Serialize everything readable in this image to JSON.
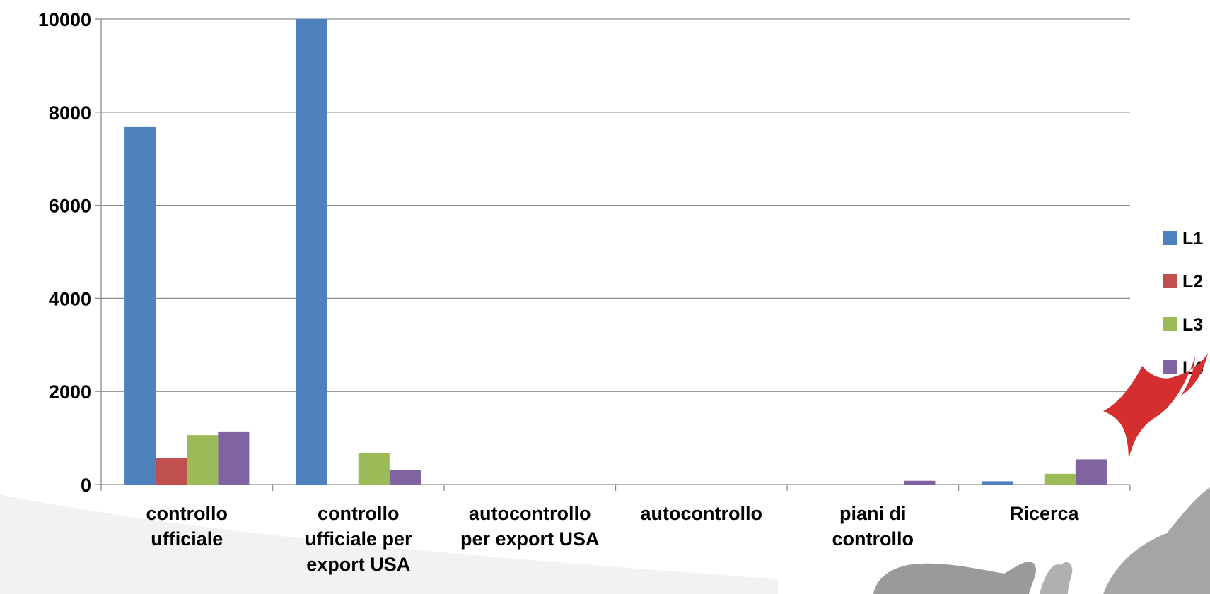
{
  "chart_data": {
    "type": "bar",
    "title": "",
    "xlabel": "",
    "ylabel": "",
    "ylim": [
      0,
      10000
    ],
    "yticks": [
      0,
      2000,
      4000,
      6000,
      8000,
      10000
    ],
    "grid": true,
    "legend_position": "right",
    "categories": [
      [
        "controllo",
        "ufficiale"
      ],
      [
        "controllo",
        "ufficiale per",
        "export USA"
      ],
      [
        "autocontrollo",
        "per export USA"
      ],
      [
        "autocontrollo"
      ],
      [
        "piani di",
        "controllo"
      ],
      [
        "Ricerca"
      ]
    ],
    "series": [
      {
        "name": "L1",
        "color": "#4F81BD",
        "values": [
          7680,
          10000,
          0,
          0,
          0,
          70
        ]
      },
      {
        "name": "L2",
        "color": "#C0504D",
        "values": [
          570,
          0,
          0,
          0,
          0,
          0
        ]
      },
      {
        "name": "L3",
        "color": "#9BBB59",
        "values": [
          1060,
          680,
          0,
          0,
          0,
          230
        ]
      },
      {
        "name": "L4",
        "color": "#8064A2",
        "values": [
          1140,
          310,
          0,
          0,
          80,
          540
        ]
      }
    ]
  },
  "decoration": {
    "logo_icon": "red-swallow-bird",
    "background_icon": "grey-animal-silhouettes",
    "logo_color": "#D42E2E",
    "silhouette_color": "#9A9A9A"
  }
}
